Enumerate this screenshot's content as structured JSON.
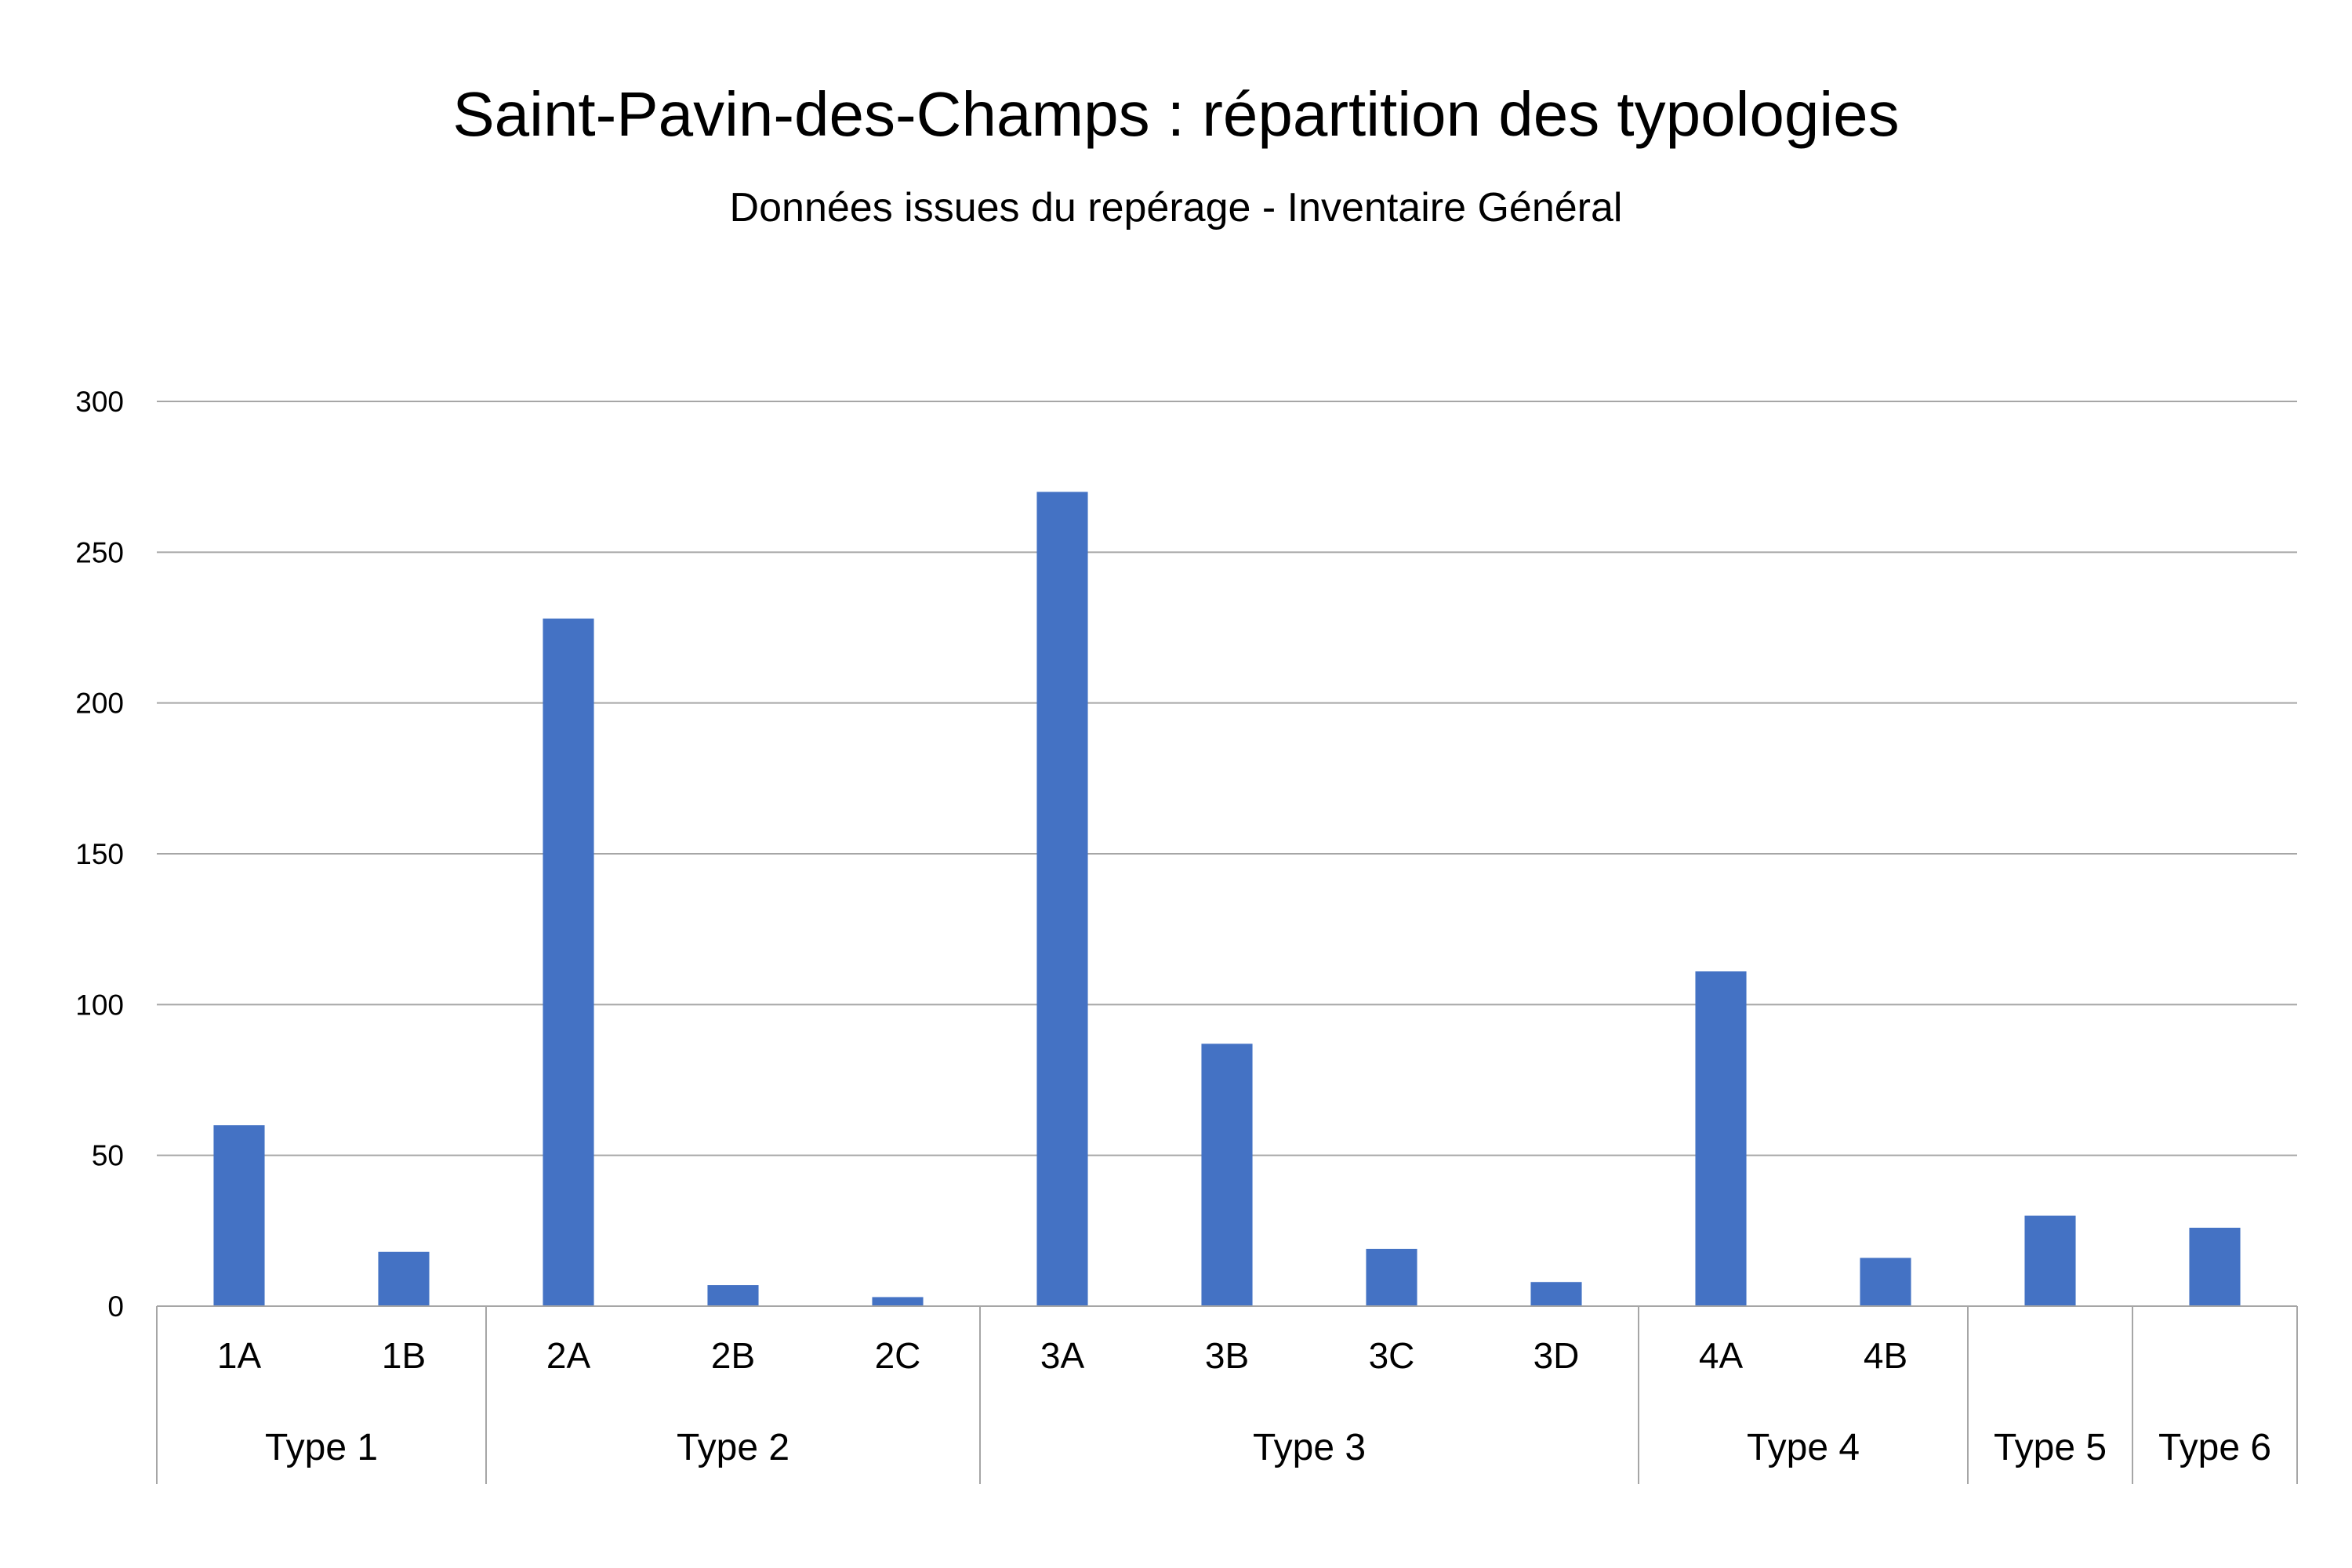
{
  "chart_data": {
    "type": "bar",
    "title": "Saint-Pavin-des-Champs  : répartition des typologies",
    "subtitle": "Données issues du repérage - Inventaire Général",
    "categories": [
      "1A",
      "1B",
      "2A",
      "2B",
      "2C",
      "3A",
      "3B",
      "3C",
      "3D",
      "4A",
      "4B",
      "",
      ""
    ],
    "groups": [
      {
        "name": "Type 1",
        "count": 2
      },
      {
        "name": "Type 2",
        "count": 3
      },
      {
        "name": "Type 3",
        "count": 4
      },
      {
        "name": "Type 4",
        "count": 2
      },
      {
        "name": "Type 5",
        "count": 1
      },
      {
        "name": "Type 6",
        "count": 1
      }
    ],
    "values": [
      60,
      18,
      228,
      7,
      3,
      270,
      87,
      19,
      8,
      111,
      16,
      30,
      26
    ],
    "ylim": [
      0,
      300
    ],
    "yticks": [
      0,
      50,
      100,
      150,
      200,
      250,
      300
    ],
    "grid": true,
    "bar_color": "#4472C4",
    "grid_color": "#A6A6A6"
  }
}
